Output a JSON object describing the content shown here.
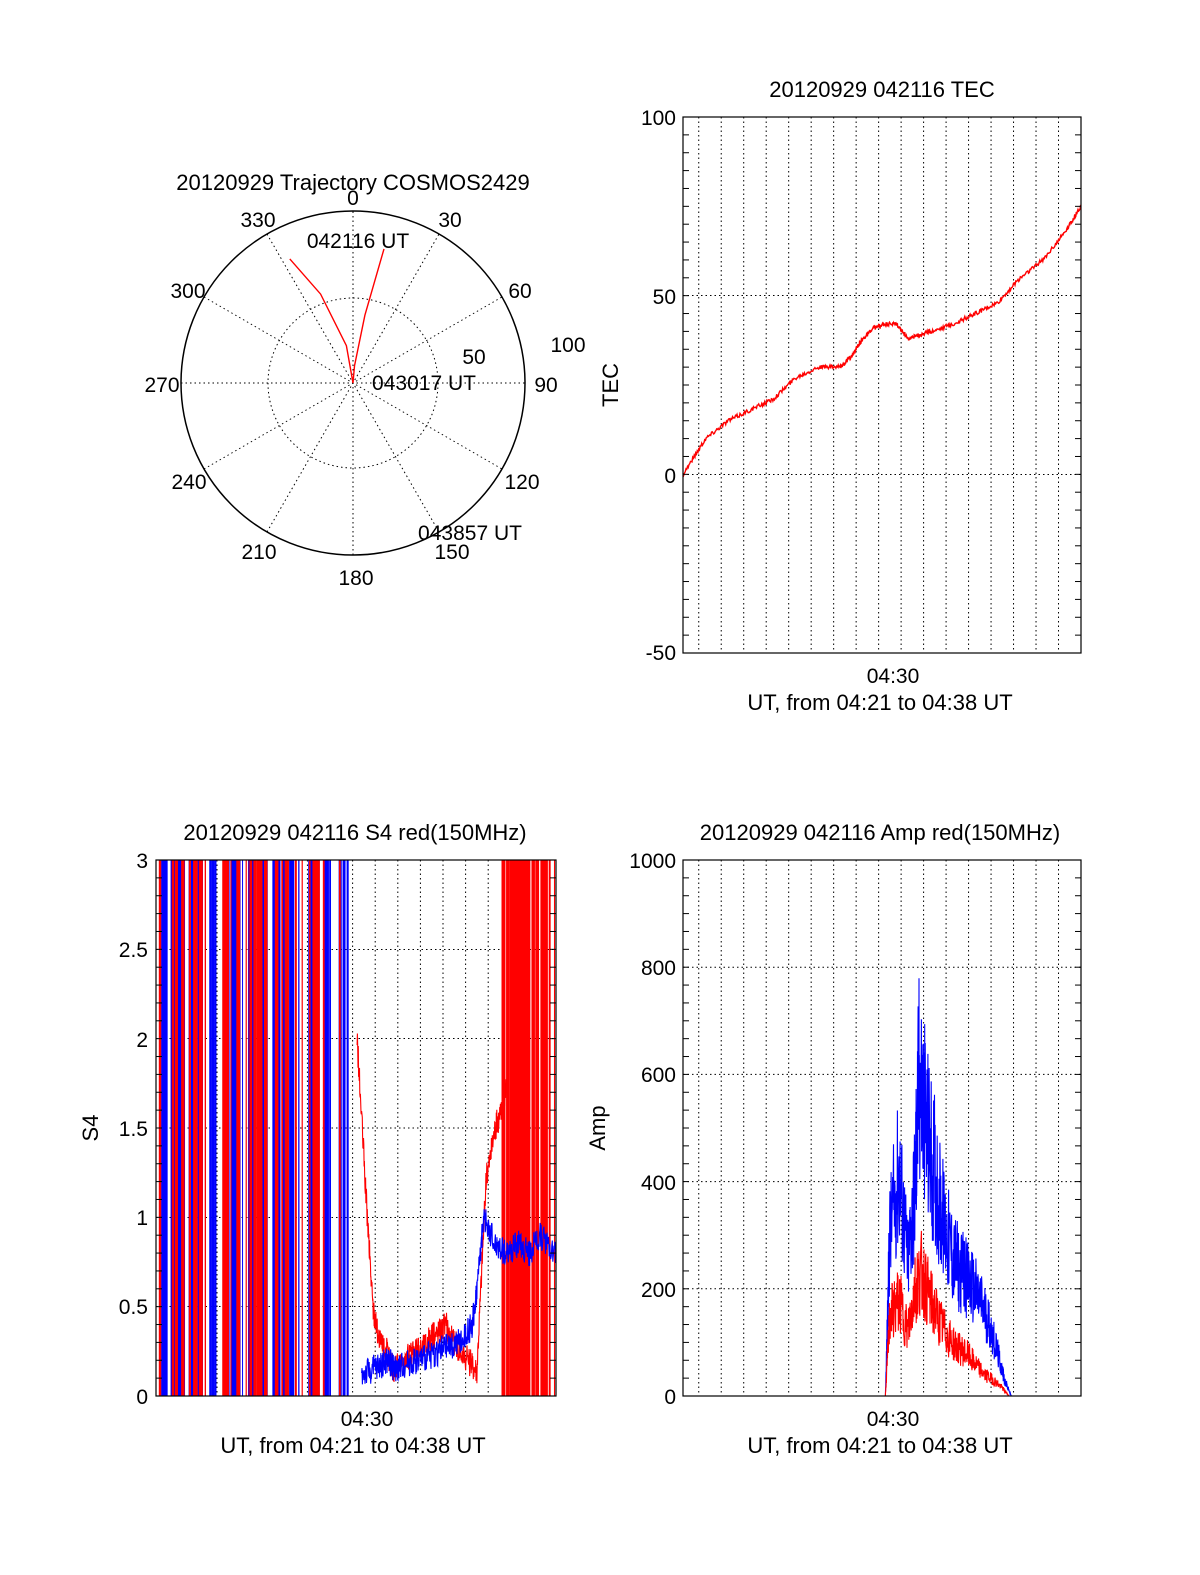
{
  "colors": {
    "red": "#ff0000",
    "blue": "#0000ff",
    "axis": "#000000"
  },
  "chart_data": [
    {
      "id": "trajectory",
      "type": "polar",
      "title": "20120929 Trajectory COSMOS2429",
      "angle_labels": [
        "0",
        "30",
        "60",
        "90",
        "120",
        "150",
        "180",
        "210",
        "240",
        "270",
        "300",
        "330"
      ],
      "radial_labels": [
        "50",
        "100"
      ],
      "r_max": 100,
      "track": {
        "color": "red",
        "points": [
          [
            -27,
            81
          ],
          [
            -20,
            55
          ],
          [
            -10,
            22
          ],
          [
            0,
            0
          ],
          [
            5,
            10
          ],
          [
            10,
            40
          ],
          [
            13,
            80
          ]
        ]
      },
      "annotations": [
        {
          "text": "042116 UT"
        },
        {
          "text": "043017 UT"
        },
        {
          "text": "043857 UT"
        }
      ]
    },
    {
      "id": "tec",
      "type": "line",
      "title": "20120929 042116 TEC",
      "xlabel": "UT, from 04:21 to 04:38 UT",
      "ylabel": "TEC",
      "x_tick_label": "04:30",
      "y_ticks": [
        "100",
        "50",
        "0",
        "-50"
      ],
      "xlim": [
        0,
        17.7
      ],
      "ylim": [
        -50,
        100
      ],
      "series": [
        {
          "color": "red",
          "x": [
            0,
            1,
            2,
            3,
            4,
            5,
            6,
            7,
            7.5,
            8,
            8.5,
            9,
            9.5,
            10,
            10.5,
            11,
            12,
            13,
            14,
            15,
            16,
            17,
            17.7
          ],
          "y": [
            0,
            10,
            15,
            18,
            21,
            27,
            30,
            30,
            33,
            38,
            41,
            42,
            42,
            38,
            39,
            40,
            42,
            45,
            48,
            55,
            60,
            68,
            75
          ]
        }
      ]
    },
    {
      "id": "s4",
      "type": "line",
      "title": "20120929 042116 S4 red(150MHz)",
      "xlabel": "UT, from 04:21 to 04:38 UT",
      "ylabel": "S4",
      "x_tick_label": "04:30",
      "y_ticks": [
        "3",
        "2.5",
        "2",
        "1.5",
        "1",
        "0.5",
        "0"
      ],
      "xlim": [
        0,
        17.7
      ],
      "ylim": [
        0,
        3
      ],
      "series": [
        {
          "color": "red",
          "x": [
            8.9,
            9.3,
            9.6,
            9.9,
            10.2,
            10.5,
            10.8,
            11.2,
            11.6,
            12,
            12.4,
            12.8,
            13.2,
            13.8,
            14.2,
            14.6,
            15,
            15.3,
            15.6
          ],
          "y": [
            2.0,
            1.1,
            0.5,
            0.3,
            0.25,
            0.15,
            0.18,
            0.22,
            0.25,
            0.3,
            0.35,
            0.4,
            0.3,
            0.2,
            0.15,
            1.2,
            1.5,
            1.6,
            1.8
          ]
        },
        {
          "color": "blue",
          "x": [
            9.1,
            9.6,
            10,
            10.3,
            10.6,
            11,
            11.5,
            12,
            12.5,
            13,
            13.5,
            14,
            14.2,
            14.5,
            15,
            15.5,
            16,
            16.5,
            17,
            17.7
          ],
          "y": [
            0.12,
            0.15,
            0.18,
            0.2,
            0.15,
            0.18,
            0.2,
            0.22,
            0.25,
            0.28,
            0.3,
            0.4,
            0.6,
            1.0,
            0.85,
            0.8,
            0.85,
            0.8,
            0.9,
            0.8
          ]
        }
      ],
      "spike_regions": [
        {
          "color": "blue",
          "x_range": [
            0.1,
            8.5
          ],
          "y": [
            0,
            3
          ]
        },
        {
          "color": "red",
          "x_range": [
            0.1,
            8.8
          ],
          "y": [
            0,
            3
          ]
        },
        {
          "color": "red",
          "x_range": [
            15.3,
            17.7
          ],
          "y": [
            0,
            3
          ]
        }
      ]
    },
    {
      "id": "amp",
      "type": "line",
      "title": "20120929 042116 Amp red(150MHz)",
      "xlabel": "UT, from 04:21 to 04:38 UT",
      "ylabel": "Amp",
      "x_tick_label": "04:30",
      "y_ticks": [
        "1000",
        "800",
        "600",
        "400",
        "200",
        "0"
      ],
      "xlim": [
        0,
        17.7
      ],
      "ylim": [
        0,
        1000
      ],
      "series": [
        {
          "color": "blue",
          "x": [
            0,
            9,
            9.2,
            9.6,
            10,
            10.3,
            10.5,
            10.8,
            11.2,
            11.6,
            12,
            12.4,
            12.8,
            13.2,
            13.6,
            14,
            14.3,
            14.6,
            17.7
          ],
          "y": [
            0,
            0,
            300,
            420,
            250,
            380,
            600,
            500,
            420,
            320,
            260,
            230,
            210,
            180,
            140,
            80,
            30,
            0,
            0
          ]
        },
        {
          "color": "red",
          "x": [
            0,
            9,
            9.2,
            9.6,
            10,
            10.3,
            10.6,
            11,
            11.4,
            11.8,
            12.2,
            12.6,
            13,
            13.4,
            13.8,
            14.2,
            14.5,
            17.7
          ],
          "y": [
            0,
            0,
            150,
            180,
            120,
            200,
            230,
            180,
            140,
            110,
            90,
            80,
            60,
            40,
            30,
            15,
            0,
            0
          ]
        }
      ]
    }
  ]
}
